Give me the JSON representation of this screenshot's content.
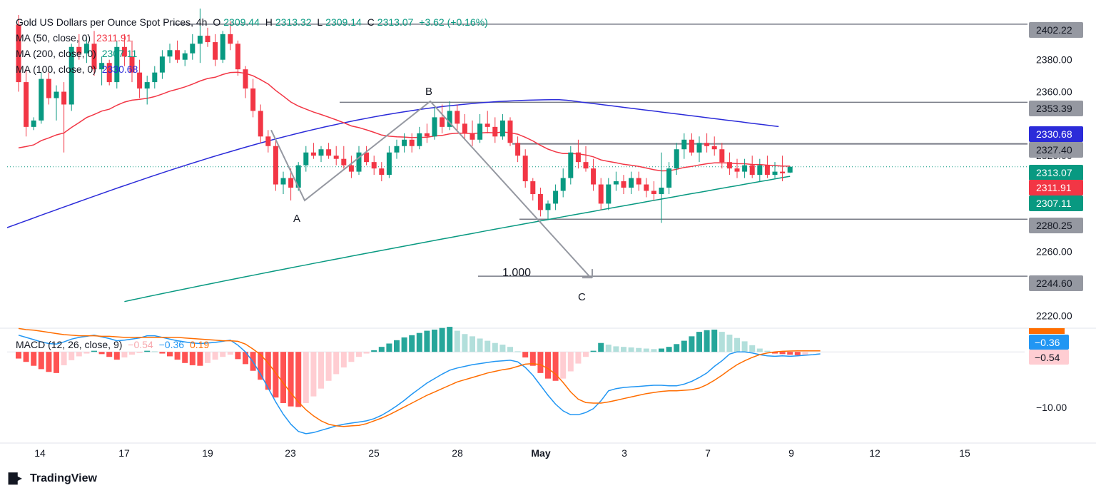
{
  "header": {
    "title": "Gold US Dollars per Ounce Spot Prices, 4h",
    "o_label": "O",
    "o": "2309.44",
    "h_label": "H",
    "h": "2313.32",
    "l_label": "L",
    "l": "2309.14",
    "c_label": "C",
    "c": "2313.07",
    "change": "+3.62 (+0.16%)"
  },
  "indicators": [
    {
      "label": "MA (50, close, 0)",
      "value": "2311.91",
      "color": "#f23645"
    },
    {
      "label": "MA (200, close, 0)",
      "value": "2307.11",
      "color": "#089981"
    },
    {
      "label": "MA (100, close, 0)",
      "value": "2330.68",
      "color": "#2b2bd9"
    }
  ],
  "macd_legend": {
    "label": "MACD (12, 26, close, 9)",
    "hist": "−0.54",
    "macd": "−0.36",
    "signal": "0.19"
  },
  "logo": "TradingView",
  "colors": {
    "up": "#089981",
    "down": "#f23645",
    "ma50": "#f23645",
    "ma100": "#2b2bd9",
    "ma200": "#089981",
    "macd": "#2196f3",
    "signal": "#ff6d00",
    "level": "#787b86"
  },
  "chart_data": {
    "type": "candlestick",
    "symbol": "Gold US Dollars per Ounce Spot Prices",
    "timeframe": "4h",
    "price_axis": {
      "ticks": [
        "2380.00",
        "2360.00",
        "2320.00",
        "2260.00",
        "2240.00",
        "2220.00"
      ],
      "ylim": [
        2213,
        2412
      ]
    },
    "time_axis": {
      "ticks": [
        "14",
        "17",
        "19",
        "23",
        "25",
        "28",
        "May",
        "3",
        "7",
        "9",
        "12",
        "15"
      ]
    },
    "price_labels": [
      {
        "text": "2402.22",
        "kind": "level"
      },
      {
        "text": "2353.39",
        "kind": "level"
      },
      {
        "text": "2330.68",
        "kind": "ma100"
      },
      {
        "text": "2327.40",
        "kind": "level"
      },
      {
        "text": "2313.07",
        "kind": "last"
      },
      {
        "text": "2311.91",
        "kind": "ma50"
      },
      {
        "text": "2307.11",
        "kind": "ma200"
      },
      {
        "text": "2280.25",
        "kind": "level"
      },
      {
        "text": "2244.60",
        "kind": "level"
      }
    ],
    "horizontal_levels": [
      2402.22,
      2353.39,
      2327.4,
      2280.25,
      2244.6
    ],
    "last_price": 2313.07,
    "abc_pattern": [
      {
        "label": "A",
        "price": 2292
      },
      {
        "label": "B",
        "price": 2354
      },
      {
        "label": "C",
        "price": 2244.6
      }
    ],
    "projection_label": "1.000",
    "ma50_value": 2311.91,
    "ma100_value": 2330.68,
    "ma200_value": 2307.11,
    "candles": [
      [
        2402,
        2408,
        2360,
        2366
      ],
      [
        2366,
        2374,
        2332,
        2338
      ],
      [
        2338,
        2344,
        2336,
        2342
      ],
      [
        2342,
        2372,
        2340,
        2368
      ],
      [
        2368,
        2372,
        2352,
        2356
      ],
      [
        2356,
        2364,
        2342,
        2360
      ],
      [
        2360,
        2366,
        2322,
        2352
      ],
      [
        2352,
        2390,
        2348,
        2388
      ],
      [
        2388,
        2396,
        2380,
        2384
      ],
      [
        2384,
        2394,
        2378,
        2390
      ],
      [
        2390,
        2398,
        2370,
        2374
      ],
      [
        2374,
        2382,
        2364,
        2378
      ],
      [
        2378,
        2380,
        2364,
        2366
      ],
      [
        2366,
        2392,
        2362,
        2388
      ],
      [
        2388,
        2396,
        2376,
        2382
      ],
      [
        2382,
        2392,
        2366,
        2372
      ],
      [
        2372,
        2380,
        2356,
        2362
      ],
      [
        2362,
        2370,
        2352,
        2366
      ],
      [
        2366,
        2376,
        2362,
        2372
      ],
      [
        2372,
        2386,
        2368,
        2382
      ],
      [
        2382,
        2390,
        2378,
        2386
      ],
      [
        2386,
        2392,
        2378,
        2380
      ],
      [
        2380,
        2386,
        2376,
        2384
      ],
      [
        2384,
        2396,
        2380,
        2390
      ],
      [
        2390,
        2412,
        2378,
        2395
      ],
      [
        2395,
        2400,
        2388,
        2391
      ],
      [
        2391,
        2396,
        2376,
        2380
      ],
      [
        2380,
        2398,
        2378,
        2396
      ],
      [
        2396,
        2404,
        2386,
        2390
      ],
      [
        2390,
        2392,
        2370,
        2374
      ],
      [
        2374,
        2376,
        2356,
        2362
      ],
      [
        2362,
        2368,
        2344,
        2348
      ],
      [
        2348,
        2352,
        2328,
        2332
      ],
      [
        2332,
        2336,
        2322,
        2326
      ],
      [
        2326,
        2330,
        2298,
        2302
      ],
      [
        2302,
        2310,
        2296,
        2306
      ],
      [
        2306,
        2312,
        2292,
        2300
      ],
      [
        2300,
        2316,
        2298,
        2314
      ],
      [
        2314,
        2326,
        2310,
        2322
      ],
      [
        2322,
        2328,
        2318,
        2320
      ],
      [
        2320,
        2326,
        2316,
        2324
      ],
      [
        2324,
        2328,
        2318,
        2320
      ],
      [
        2320,
        2326,
        2314,
        2318
      ],
      [
        2318,
        2326,
        2312,
        2314
      ],
      [
        2314,
        2320,
        2306,
        2310
      ],
      [
        2310,
        2326,
        2308,
        2322
      ],
      [
        2322,
        2326,
        2314,
        2316
      ],
      [
        2316,
        2320,
        2308,
        2312
      ],
      [
        2312,
        2316,
        2304,
        2308
      ],
      [
        2308,
        2326,
        2306,
        2322
      ],
      [
        2322,
        2330,
        2318,
        2326
      ],
      [
        2326,
        2334,
        2322,
        2330
      ],
      [
        2330,
        2334,
        2322,
        2326
      ],
      [
        2326,
        2338,
        2324,
        2334
      ],
      [
        2334,
        2340,
        2328,
        2332
      ],
      [
        2332,
        2350,
        2330,
        2344
      ],
      [
        2344,
        2352,
        2334,
        2338
      ],
      [
        2338,
        2354,
        2336,
        2348
      ],
      [
        2348,
        2352,
        2336,
        2340
      ],
      [
        2340,
        2346,
        2330,
        2334
      ],
      [
        2334,
        2342,
        2326,
        2330
      ],
      [
        2330,
        2346,
        2328,
        2340
      ],
      [
        2340,
        2348,
        2334,
        2338
      ],
      [
        2338,
        2344,
        2328,
        2332
      ],
      [
        2332,
        2346,
        2330,
        2342
      ],
      [
        2342,
        2344,
        2326,
        2328
      ],
      [
        2328,
        2332,
        2316,
        2320
      ],
      [
        2320,
        2324,
        2300,
        2304
      ],
      [
        2304,
        2306,
        2292,
        2296
      ],
      [
        2296,
        2300,
        2282,
        2286
      ],
      [
        2286,
        2292,
        2280,
        2290
      ],
      [
        2290,
        2302,
        2286,
        2298
      ],
      [
        2298,
        2312,
        2294,
        2306
      ],
      [
        2306,
        2326,
        2302,
        2322
      ],
      [
        2322,
        2330,
        2312,
        2316
      ],
      [
        2316,
        2326,
        2310,
        2312
      ],
      [
        2312,
        2318,
        2298,
        2302
      ],
      [
        2302,
        2306,
        2286,
        2290
      ],
      [
        2290,
        2306,
        2286,
        2302
      ],
      [
        2302,
        2310,
        2298,
        2304
      ],
      [
        2304,
        2308,
        2296,
        2300
      ],
      [
        2300,
        2310,
        2296,
        2306
      ],
      [
        2306,
        2310,
        2298,
        2302
      ],
      [
        2302,
        2306,
        2294,
        2298
      ],
      [
        2298,
        2304,
        2292,
        2296
      ],
      [
        2296,
        2322,
        2278,
        2300
      ],
      [
        2300,
        2316,
        2296,
        2312
      ],
      [
        2312,
        2328,
        2308,
        2324
      ],
      [
        2324,
        2334,
        2318,
        2330
      ],
      [
        2330,
        2334,
        2320,
        2322
      ],
      [
        2322,
        2332,
        2316,
        2328
      ],
      [
        2328,
        2334,
        2322,
        2326
      ],
      [
        2326,
        2332,
        2320,
        2324
      ],
      [
        2324,
        2328,
        2312,
        2316
      ],
      [
        2316,
        2322,
        2308,
        2312
      ],
      [
        2312,
        2318,
        2306,
        2310
      ],
      [
        2310,
        2318,
        2306,
        2314
      ],
      [
        2314,
        2320,
        2306,
        2308
      ],
      [
        2308,
        2318,
        2304,
        2314
      ],
      [
        2314,
        2320,
        2306,
        2308
      ],
      [
        2308,
        2316,
        2306,
        2310
      ],
      [
        2310,
        2320,
        2304,
        2309
      ],
      [
        2309.44,
        2313.32,
        2309.14,
        2313.07
      ]
    ],
    "macd": {
      "ylim": [
        -16,
        4
      ],
      "ticks": [
        "−10.00"
      ],
      "histogram": [
        -1.2,
        -1.8,
        -2.5,
        -3.1,
        -3.6,
        -3.8,
        -2.4,
        -1.5,
        -0.8,
        -0.3,
        0.2,
        -0.4,
        -0.9,
        -1.4,
        -1.0,
        -0.5,
        -0.2,
        0.2,
        0.1,
        -0.3,
        -0.8,
        -1.4,
        -2.0,
        -2.4,
        -2.5,
        -2.0,
        -1.4,
        -0.9,
        -0.5,
        -1.3,
        -2.2,
        -3.4,
        -5.0,
        -6.8,
        -8.2,
        -9.2,
        -9.8,
        -9.9,
        -9.2,
        -8.0,
        -6.6,
        -5.2,
        -4.0,
        -2.8,
        -1.8,
        -0.9,
        -0.3,
        0.3,
        0.9,
        1.5,
        2.1,
        2.6,
        3.0,
        3.4,
        3.8,
        4.0,
        4.3,
        4.5,
        3.8,
        3.2,
        2.8,
        2.4,
        2.0,
        1.6,
        1.3,
        0.9,
        0.1,
        -1.0,
        -2.5,
        -3.8,
        -4.8,
        -5.2,
        -4.8,
        -3.5,
        -2.1,
        -0.9,
        0.2,
        1.6,
        1.3,
        1.0,
        0.9,
        0.8,
        0.7,
        0.6,
        0.5,
        0.6,
        0.9,
        1.4,
        2.0,
        2.8,
        3.6,
        3.9,
        4.0,
        3.6,
        3.1,
        2.5,
        1.9,
        1.2,
        0.6,
        0.2,
        -0.3,
        -0.4,
        -0.5,
        -0.6,
        -0.54
      ],
      "macd_line": [
        3.0,
        2.6,
        2.2,
        1.8,
        1.5,
        1.4,
        1.8,
        2.3,
        2.6,
        2.8,
        3.0,
        2.7,
        2.4,
        2.0,
        2.1,
        2.3,
        2.5,
        2.9,
        2.9,
        2.6,
        2.3,
        2.0,
        1.8,
        1.6,
        1.5,
        1.6,
        1.7,
        1.9,
        2.1,
        1.2,
        0.0,
        -1.8,
        -4.0,
        -6.5,
        -9.0,
        -11.2,
        -13.0,
        -14.3,
        -14.7,
        -14.5,
        -14.1,
        -13.7,
        -13.3,
        -13.0,
        -12.8,
        -12.6,
        -12.4,
        -12.0,
        -11.4,
        -10.6,
        -9.7,
        -8.7,
        -7.6,
        -6.6,
        -5.6,
        -4.8,
        -4.0,
        -3.3,
        -2.9,
        -2.6,
        -2.3,
        -2.1,
        -1.9,
        -1.7,
        -1.6,
        -1.5,
        -1.8,
        -2.8,
        -4.2,
        -6.0,
        -7.8,
        -9.4,
        -10.6,
        -11.3,
        -11.3,
        -10.9,
        -10.2,
        -8.8,
        -7.0,
        -6.6,
        -6.4,
        -6.3,
        -6.2,
        -6.1,
        -6.0,
        -6.0,
        -6.1,
        -6.1,
        -5.8,
        -5.3,
        -4.6,
        -3.8,
        -2.6,
        -1.6,
        -0.4,
        0.0,
        0.0,
        -0.2,
        -0.5,
        -0.7,
        -0.8,
        -0.7,
        -0.8,
        -0.7,
        -0.6,
        -0.5,
        -0.36
      ],
      "signal_line": [
        4.2,
        4.0,
        3.9,
        3.7,
        3.5,
        3.3,
        3.1,
        3.0,
        2.9,
        2.9,
        2.9,
        2.8,
        2.8,
        2.7,
        2.6,
        2.6,
        2.6,
        2.6,
        2.6,
        2.6,
        2.6,
        2.6,
        2.5,
        2.4,
        2.3,
        2.2,
        2.1,
        2.0,
        2.0,
        1.9,
        1.4,
        0.5,
        -0.5,
        -2.0,
        -3.8,
        -5.6,
        -7.4,
        -9.0,
        -10.4,
        -11.5,
        -12.4,
        -13.0,
        -13.3,
        -13.4,
        -13.3,
        -13.2,
        -12.9,
        -12.4,
        -11.9,
        -11.3,
        -10.6,
        -9.9,
        -9.2,
        -8.5,
        -7.8,
        -7.2,
        -6.6,
        -6.0,
        -5.4,
        -5.0,
        -4.6,
        -4.2,
        -3.8,
        -3.5,
        -3.2,
        -3.0,
        -2.6,
        -2.2,
        -2.1,
        -2.3,
        -3.0,
        -4.0,
        -5.5,
        -7.2,
        -8.5,
        -9.1,
        -9.2,
        -9.2,
        -9.0,
        -8.7,
        -8.4,
        -8.1,
        -7.8,
        -7.5,
        -7.3,
        -7.1,
        -7.0,
        -7.0,
        -6.9,
        -6.8,
        -6.5,
        -5.9,
        -5.1,
        -4.2,
        -3.2,
        -2.3,
        -1.6,
        -1.0,
        -0.5,
        -0.2,
        0.0,
        0.1,
        0.15,
        0.18,
        0.19,
        0.19,
        0.19
      ]
    }
  }
}
